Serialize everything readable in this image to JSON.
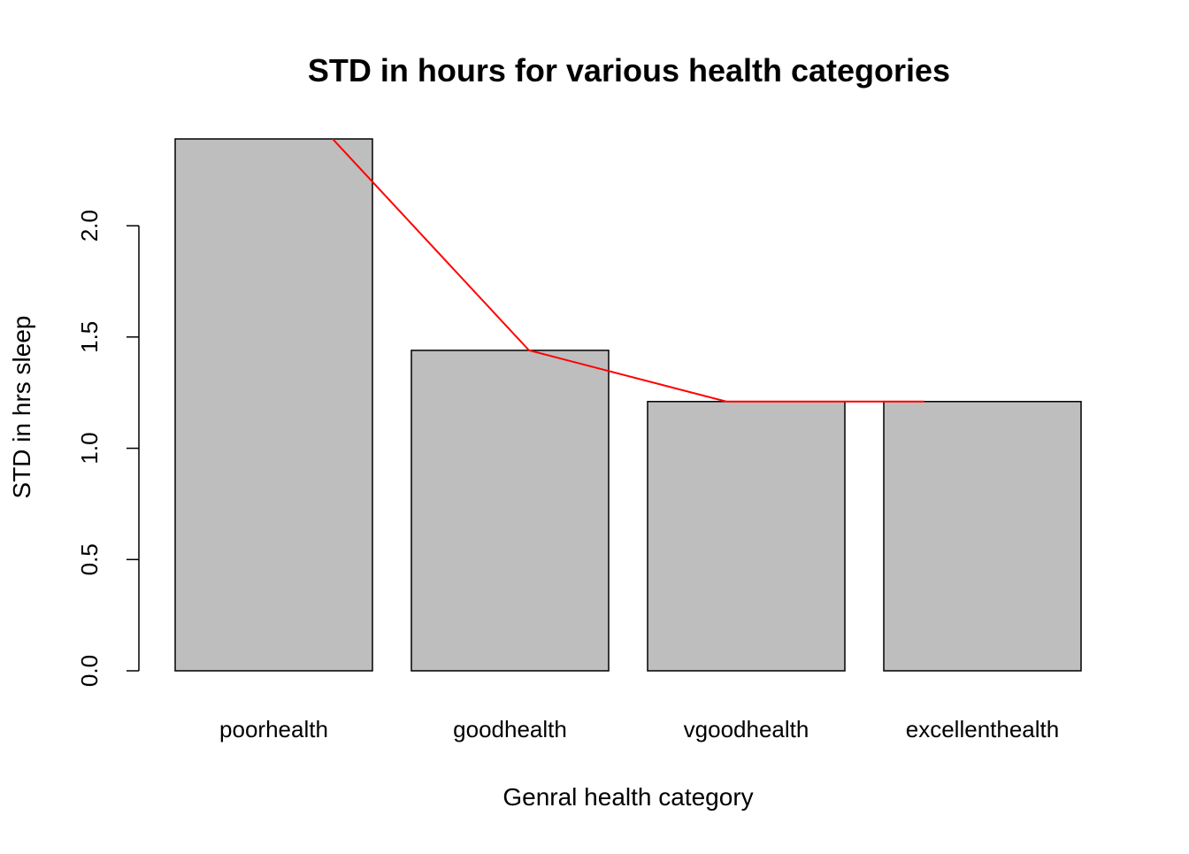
{
  "chart_data": {
    "type": "bar",
    "title": "STD in hours for various health categories",
    "xlabel": "Genral health category",
    "ylabel": "STD in hrs sleep",
    "categories": [
      "poorhealth",
      "goodhealth",
      "vgoodhealth",
      "excellenthealth"
    ],
    "values": [
      2.39,
      1.44,
      1.21,
      1.21
    ],
    "overlay_line": {
      "color": "#ff0000",
      "x": [
        "poorhealth",
        "goodhealth",
        "vgoodhealth",
        "excellenthealth"
      ],
      "y": [
        2.39,
        1.44,
        1.21,
        1.21
      ]
    },
    "yticks": [
      "0.0",
      "0.5",
      "1.0",
      "1.5",
      "2.0"
    ],
    "ylim": [
      0,
      2.39
    ],
    "grid": false,
    "bar_color": "#bebebe",
    "bar_edge_color": "#000000"
  }
}
